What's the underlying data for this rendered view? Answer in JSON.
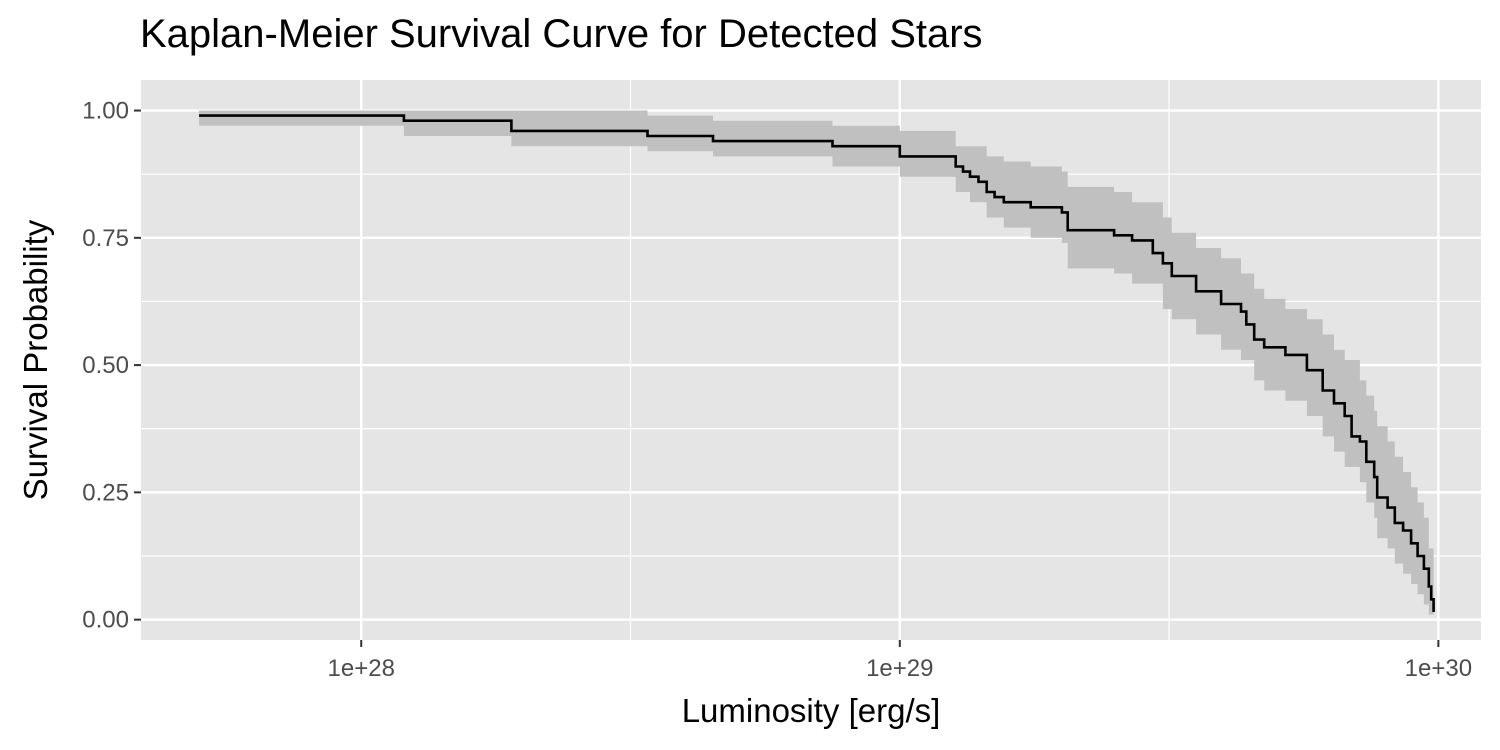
{
  "chart_data": {
    "type": "line",
    "title": "Kaplan-Meier Survival Curve for Detected Stars",
    "xlabel": "Luminosity [erg/s]",
    "ylabel": "Survival Probability",
    "x_scale": "log10",
    "xlim": [
      3.9e+27,
      1.2e+30
    ],
    "ylim": [
      -0.04,
      1.06
    ],
    "x_ticks": [
      {
        "value": 1e+28,
        "label": "1e+28"
      },
      {
        "value": 1e+29,
        "label": "1e+29"
      },
      {
        "value": 1e+30,
        "label": "1e+30"
      }
    ],
    "y_ticks": [
      {
        "value": 0.0,
        "label": "0.00"
      },
      {
        "value": 0.25,
        "label": "0.25"
      },
      {
        "value": 0.5,
        "label": "0.50"
      },
      {
        "value": 0.75,
        "label": "0.75"
      },
      {
        "value": 1.0,
        "label": "1.00"
      }
    ],
    "grid": true,
    "colors": {
      "panel_bg": "#e5e5e5",
      "grid": "#ffffff",
      "line": "#000000",
      "band": "#c0c0c0",
      "tick_text": "#4d4d4d",
      "tick_mark": "#333333"
    },
    "series": [
      {
        "kind": "step",
        "x": [
          5e+27,
          1.2e+28,
          1.9e+28,
          3.4e+28,
          4.5e+28,
          7.5e+28,
          1e+29,
          1.27e+29,
          1.31e+29,
          1.35e+29,
          1.4e+29,
          1.45e+29,
          1.5e+29,
          1.56e+29,
          1.63e+29,
          1.75e+29,
          2e+29,
          2.05e+29,
          2.5e+29,
          2.7e+29,
          2.95e+29,
          3.08e+29,
          3.2e+29,
          3.55e+29,
          3.95e+29,
          4.3e+29,
          4.4e+29,
          4.55e+29,
          4.75e+29,
          5.2e+29,
          5.7e+29,
          6.1e+29,
          6.4e+29,
          6.7e+29,
          6.9e+29,
          7.15e+29,
          7.35e+29,
          7.6e+29,
          7.7e+29,
          8.05e+29,
          8.3e+29,
          8.6e+29,
          8.9e+29,
          9.15e+29,
          9.4e+29,
          9.6e+29,
          9.7e+29,
          9.8e+29
        ],
        "y": [
          0.99,
          0.98,
          0.96,
          0.95,
          0.94,
          0.93,
          0.91,
          0.89,
          0.88,
          0.87,
          0.86,
          0.84,
          0.83,
          0.82,
          0.82,
          0.81,
          0.8,
          0.765,
          0.755,
          0.745,
          0.72,
          0.7,
          0.675,
          0.645,
          0.62,
          0.605,
          0.58,
          0.55,
          0.535,
          0.52,
          0.49,
          0.45,
          0.425,
          0.4,
          0.36,
          0.35,
          0.31,
          0.28,
          0.24,
          0.22,
          0.19,
          0.175,
          0.15,
          0.125,
          0.1,
          0.065,
          0.04,
          0.015
        ]
      }
    ],
    "confidence_band": {
      "x": [
        5e+27,
        1.2e+28,
        1.9e+28,
        3.4e+28,
        4.5e+28,
        7.5e+28,
        1e+29,
        1.27e+29,
        1.35e+29,
        1.45e+29,
        1.56e+29,
        1.75e+29,
        2e+29,
        2.05e+29,
        2.5e+29,
        2.7e+29,
        3.08e+29,
        3.2e+29,
        3.55e+29,
        3.95e+29,
        4.3e+29,
        4.55e+29,
        4.75e+29,
        5.2e+29,
        5.7e+29,
        6.1e+29,
        6.4e+29,
        6.7e+29,
        7.15e+29,
        7.35e+29,
        7.6e+29,
        7.7e+29,
        8.05e+29,
        8.3e+29,
        8.6e+29,
        8.9e+29,
        9.15e+29,
        9.4e+29,
        9.6e+29,
        9.8e+29
      ],
      "lower": [
        0.97,
        0.95,
        0.93,
        0.92,
        0.91,
        0.89,
        0.87,
        0.84,
        0.82,
        0.79,
        0.77,
        0.75,
        0.74,
        0.69,
        0.68,
        0.66,
        0.61,
        0.59,
        0.56,
        0.53,
        0.51,
        0.47,
        0.45,
        0.43,
        0.4,
        0.36,
        0.33,
        0.3,
        0.27,
        0.23,
        0.2,
        0.16,
        0.14,
        0.11,
        0.09,
        0.07,
        0.05,
        0.03,
        0.01,
        0.0
      ],
      "upper": [
        1.0,
        1.0,
        1.0,
        0.99,
        0.98,
        0.97,
        0.96,
        0.93,
        0.93,
        0.91,
        0.9,
        0.89,
        0.88,
        0.85,
        0.84,
        0.82,
        0.79,
        0.76,
        0.73,
        0.71,
        0.68,
        0.65,
        0.63,
        0.61,
        0.59,
        0.56,
        0.53,
        0.51,
        0.47,
        0.44,
        0.41,
        0.38,
        0.35,
        0.32,
        0.29,
        0.26,
        0.23,
        0.2,
        0.14,
        0.06
      ]
    }
  }
}
